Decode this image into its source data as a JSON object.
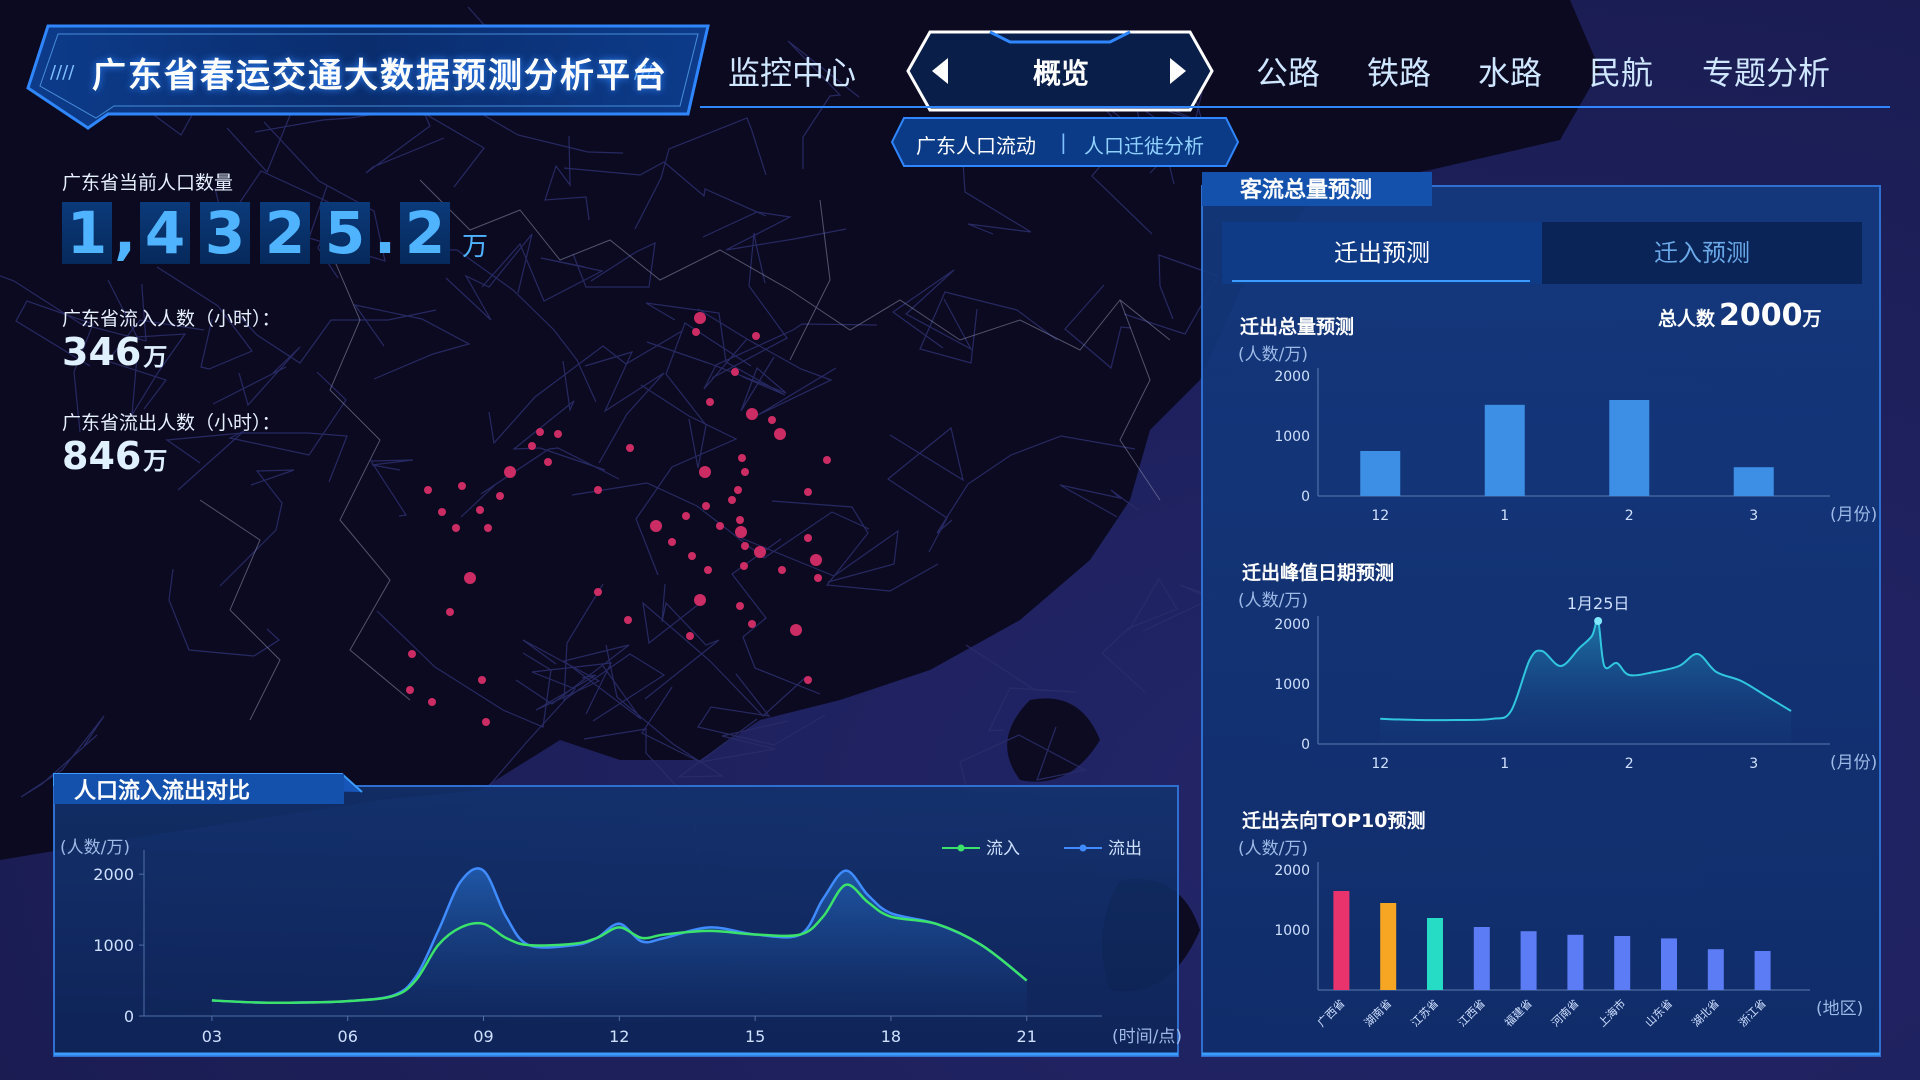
{
  "header": {
    "title": "广东省春运交通大数据预测分析平台",
    "nav": [
      "监控中心",
      "概览",
      "公路",
      "铁路",
      "水路",
      "民航",
      "专题分析"
    ],
    "active_nav": "概览",
    "subnav": [
      "广东人口流动",
      "人口迁徙分析"
    ],
    "subnav_separator": "|"
  },
  "stats": {
    "population_label": "广东省当前人口数量",
    "population_digits": [
      "1",
      ",",
      "4",
      "3",
      "2",
      "5",
      ".",
      "2"
    ],
    "population_unit": "万",
    "inflow_label": "广东省流入人数（小时）：",
    "inflow_value": "346",
    "inflow_unit": "万",
    "outflow_label": "广东省流出人数（小时）：",
    "outflow_value": "846",
    "outflow_unit": "万"
  },
  "flow_panel": {
    "title": "人口流入流出对比"
  },
  "forecast_panel": {
    "title": "客流总量预测",
    "tabs": [
      "迁出预测",
      "迁入预测"
    ],
    "active_tab": "迁出预测",
    "total_chart_title": "迁出总量预测",
    "total_label": "总人数",
    "total_value": "2000",
    "total_unit": "万",
    "peak_chart_title": "迁出峰值日期预测",
    "top10_chart_title": "迁出去向TOP10预测"
  },
  "colors": {
    "accent": "#2f86ff",
    "bar_blue": "#3d8fe6",
    "inflow_line": "#3be36b",
    "outflow_line": "#3f8bff",
    "peak_line": "#31c6e0",
    "hotspot": "#e0306a"
  },
  "chart_data": [
    {
      "id": "flow",
      "type": "line",
      "ylabel": "(人数/万)",
      "xlabel": "(时间/点)",
      "x": [
        3,
        4,
        5,
        6,
        7,
        7.5,
        8,
        8.5,
        9,
        9.5,
        10,
        11,
        11.5,
        12,
        12.5,
        13,
        14,
        15,
        16,
        16.5,
        17,
        17.5,
        18,
        19,
        20,
        21
      ],
      "xticks": [
        "03",
        "06",
        "09",
        "12",
        "15",
        "18",
        "21"
      ],
      "xtick_values": [
        3,
        6,
        9,
        12,
        15,
        18,
        21
      ],
      "yticks": [
        0,
        1000,
        2000
      ],
      "ylim": [
        0,
        2200
      ],
      "xlim": [
        1.5,
        22
      ],
      "legend": [
        "流入",
        "流出"
      ],
      "series": [
        {
          "name": "流入",
          "values": [
            220,
            190,
            190,
            210,
            280,
            500,
            1000,
            1250,
            1300,
            1100,
            1000,
            1020,
            1100,
            1250,
            1100,
            1150,
            1200,
            1150,
            1150,
            1400,
            1850,
            1600,
            1400,
            1300,
            1000,
            500
          ]
        },
        {
          "name": "流出",
          "values": [
            220,
            190,
            190,
            210,
            290,
            550,
            1200,
            1900,
            2050,
            1400,
            1000,
            1000,
            1100,
            1300,
            1050,
            1100,
            1250,
            1150,
            1150,
            1650,
            2050,
            1700,
            1450,
            1300,
            1000,
            500
          ]
        }
      ]
    },
    {
      "id": "total",
      "type": "bar",
      "ylabel": "(人数/万)",
      "xlabel": "(月份)",
      "categories": [
        "12",
        "1",
        "2",
        "3"
      ],
      "values": [
        750,
        1520,
        1600,
        480
      ],
      "yticks": [
        0,
        1000,
        2000
      ],
      "ylim": [
        0,
        2000
      ]
    },
    {
      "id": "peak",
      "type": "area",
      "ylabel": "(人数/万)",
      "xlabel": "(月份)",
      "xticks": [
        "12",
        "1",
        "2",
        "3"
      ],
      "yticks": [
        0,
        1000,
        2000
      ],
      "ylim": [
        0,
        2000
      ],
      "annotation": "1月25日",
      "x": [
        0,
        0.3,
        0.6,
        0.9,
        1.05,
        1.2,
        1.3,
        1.45,
        1.6,
        1.7,
        1.75,
        1.8,
        1.9,
        2.0,
        2.2,
        2.4,
        2.55,
        2.7,
        2.9,
        3.1,
        3.3
      ],
      "values": [
        420,
        400,
        400,
        420,
        550,
        1400,
        1550,
        1300,
        1600,
        1800,
        2050,
        1300,
        1350,
        1150,
        1200,
        1300,
        1500,
        1200,
        1050,
        800,
        550
      ]
    },
    {
      "id": "top10",
      "type": "bar",
      "ylabel": "(人数/万)",
      "xlabel": "(地区)",
      "categories": [
        "广西省",
        "湖南省",
        "江苏省",
        "江西省",
        "福建省",
        "河南省",
        "上海市",
        "山东省",
        "湖北省",
        "浙江省"
      ],
      "values": [
        1650,
        1450,
        1200,
        1050,
        980,
        920,
        900,
        860,
        680,
        650
      ],
      "colors": [
        "#e8336d",
        "#f6a623",
        "#26dcc4",
        "#5b7cf5",
        "#5b7cf5",
        "#5b7cf5",
        "#5b7cf5",
        "#5b7cf5",
        "#5b7cf5",
        "#5b7cf5"
      ],
      "yticks": [
        1000,
        2000
      ],
      "ylim": [
        0,
        2000
      ]
    }
  ]
}
